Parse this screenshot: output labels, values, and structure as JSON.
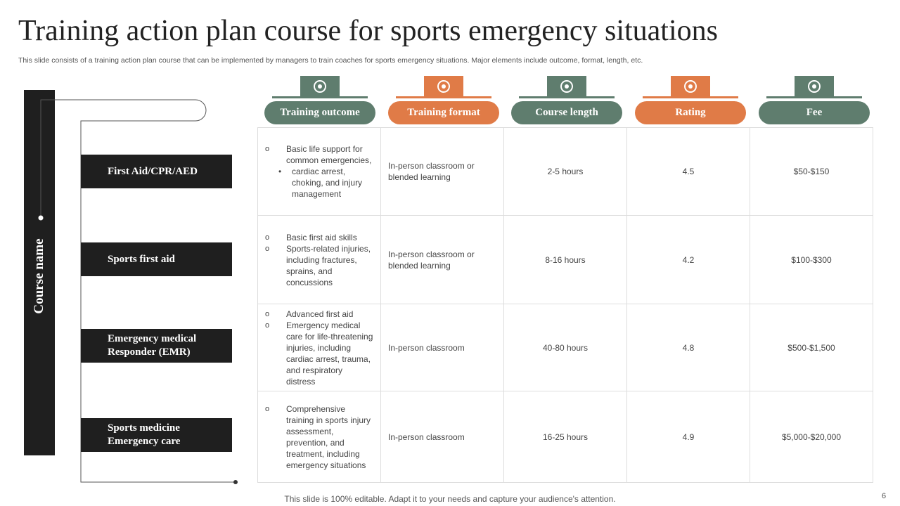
{
  "header": {
    "title": "Training action plan course for sports emergency situations",
    "subtitle": "This slide consists of a training action plan course that can be implemented by managers to train coaches for sports emergency situations. Major elements include outcome, format, length, etc."
  },
  "side_label": "Course name",
  "courses": [
    "First Aid/CPR/AED",
    "Sports first aid",
    "Emergency medical Responder (EMR)",
    "Sports medicine Emergency care"
  ],
  "columns": [
    "Training outcome",
    "Training format",
    "Course length",
    "Rating",
    "Fee"
  ],
  "rows": [
    {
      "outcome": [
        {
          "text": "Basic life support for common emergencies,",
          "level": 1
        },
        {
          "text": "cardiac arrest, choking, and injury management",
          "level": 2
        }
      ],
      "format": "In-person classroom or blended learning",
      "length": "2-5 hours",
      "rating": 4.5,
      "fee": "$50-$150"
    },
    {
      "outcome": [
        {
          "text": "Basic first aid skills",
          "level": 1
        },
        {
          "text": "Sports-related injuries, including fractures, sprains, and concussions",
          "level": 1
        }
      ],
      "format": "In-person classroom or blended learning",
      "length": "8-16 hours",
      "rating": 4.2,
      "fee": "$100-$300"
    },
    {
      "outcome": [
        {
          "text": "Advanced first aid",
          "level": 1
        },
        {
          "text": "Emergency medical care for life-threatening injuries, including cardiac arrest, trauma, and respiratory distress",
          "level": 1
        }
      ],
      "format": "In-person classroom",
      "length": "40-80 hours",
      "rating": 4.8,
      "fee": "$500-$1,500"
    },
    {
      "outcome": [
        {
          "text": "Comprehensive training in sports injury assessment, prevention, and treatment, including emergency situations",
          "level": 1
        }
      ],
      "format": "In-person classroom",
      "length": "16-25 hours",
      "rating": 4.9,
      "fee": "$5,000-$20,000"
    }
  ],
  "footer": "This slide is 100% editable. Adapt it to your needs and capture your audience's attention.",
  "page_number": 6
}
